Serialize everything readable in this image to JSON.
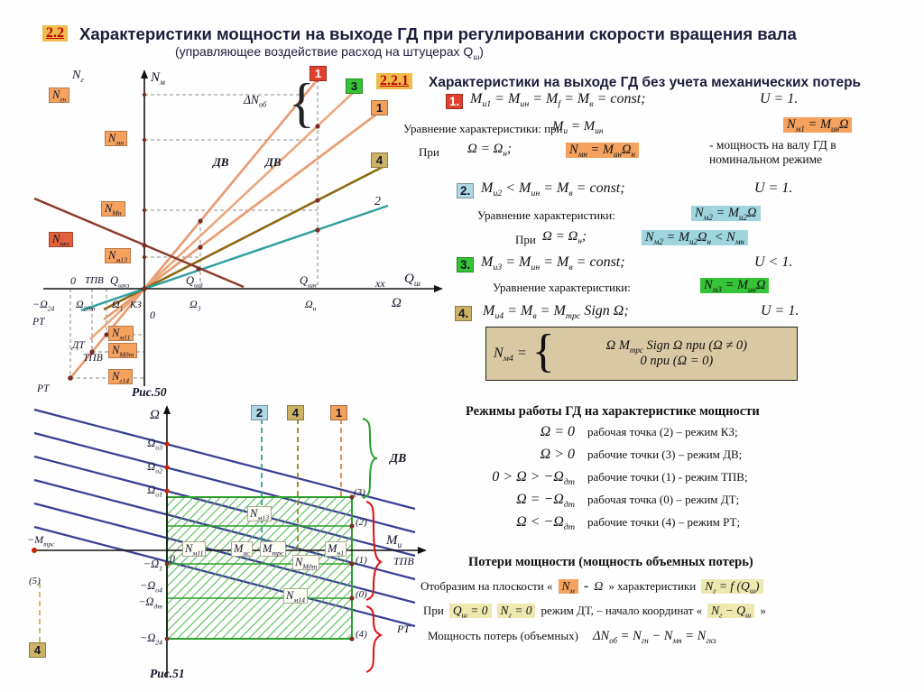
{
  "colors": {
    "accent_orange": "#F5A25F",
    "accent_teal": "#9FD6DE",
    "accent_green": "#35C435",
    "accent_tan": "#D9C9A3",
    "accent_yellow": "#EDE8AE",
    "badge_gold": "#F0BC4E",
    "badge_red": "#B90000",
    "line_salmon": "#E89A70",
    "line_olive": "#8B6914",
    "line_teal": "#2E9E9E",
    "line_brown": "#8B3A2A",
    "line_navy": "#3A3F94",
    "hatch_green": "#2BA02B"
  },
  "header": {
    "badge": "2.2",
    "title": "Характеристики мощности на выходе ГД при регулировании скорости вращения вала",
    "subtitle": "(управляющее воздействие расход на штуцерах Q_{ш})"
  },
  "section": {
    "badge": "2.2.1",
    "title": "Характеристики на выходе ГД без учета механических потерь"
  },
  "items": [
    {
      "num": "1.",
      "formula": "M_{и1} = M_{ин} = M_{f} = M_{в} = const;",
      "u": "U = 1.",
      "eq_label": "Уравнение характеристики: при",
      "eq_cond": "M_{и} = M_{ин}",
      "eq_result": "N_{м1} = M_{ин}Ω",
      "at_label": "При",
      "at_cond": "Ω = Ω_{н};",
      "at_result": "N_{мн} = M_{ин}Ω_{н}",
      "at_note": "- мощность на валу ГД в номинальном режиме"
    },
    {
      "num": "2.",
      "formula": "M_{и2} < M_{ин} = M_{в} = const;",
      "u": "U = 1.",
      "eq_label": "Уравнение характеристики:",
      "eq_result": "N_{м2} = M_{и2}Ω",
      "at_label": "При",
      "at_cond": "Ω = Ω_{н};",
      "at_result": "N_{м2} = M_{и2}Ω_{н} < N_{мн}"
    },
    {
      "num": "3.",
      "formula": "M_{и3} = M_{ин} = M_{в} = const;",
      "u": "U < 1.",
      "eq_label": "Уравнение характеристики:",
      "eq_result": "N_{м3} = M_{ин}Ω"
    },
    {
      "num": "4.",
      "formula": "M_{и4} = M_{в} = M_{трс} Sign Ω;",
      "u": "U = 1.",
      "box_lhs": "N_{м4} =",
      "box_case1": "Ω M_{трс} Sign Ω   при   (Ω ≠ 0)",
      "box_case2": "0  при  (Ω = 0)"
    }
  ],
  "modes": {
    "title": "Режимы работы ГД на характеристике мощности",
    "rows": [
      {
        "cond": "Ω = 0",
        "desc": "рабочая точка (2) – режим КЗ;"
      },
      {
        "cond": "Ω > 0",
        "desc": "рабочие точки (3) – режим ДВ;"
      },
      {
        "cond": "0 > Ω > −Ω_{дт}",
        "desc": "рабочие точки (1) - режим ТПВ;"
      },
      {
        "cond": "Ω = −Ω_{дт}",
        "desc": "рабочая точка (0) – режим ДТ;"
      },
      {
        "cond": "Ω < −Ω_{дт}",
        "desc": "рабочие точки (4) – режим РТ;"
      }
    ]
  },
  "losses": {
    "title": "Потери мощности (мощность объемных потерь)",
    "line1_pre": "Отобразим на плоскости «",
    "line1_nm": "N_{м}",
    "line1_dash": "-",
    "line1_omega": "Ω",
    "line1_mid": "» характеристики",
    "line1_func": "N_{г} = f (Q_{ш})",
    "line2_pre": "При",
    "line2_q": "Q_{ш} = 0",
    "line2_n": "N_{г} = 0",
    "line2_mid": "режим ДТ, – начало координат «",
    "line2_axes": "N_{г} − Q_{ш}",
    "line2_close": "»",
    "line3_pre": "Мощность потерь (объемных)",
    "line3_formula": "ΔN_{об} = N_{гн} − N_{мн} = N_{гкз}"
  },
  "fig50": {
    "caption": "Рис.50",
    "y_label": "N_{м}",
    "y_label2": "N_{г}",
    "x_label": "Q_{ш}",
    "xx": "хх",
    "omega": "Ω",
    "chips": {
      "gn": "N_{гн}",
      "mn": "N_{мн}",
      "Mn": "N_{Мн}",
      "pkz": "N_{пкз}",
      "m13": "N_{м13}",
      "m11": "N_{м11}",
      "Mdt": "N_{Мдт}",
      "g14": "N_{г14}"
    },
    "tags": {
      "a": "1",
      "b": "3",
      "c": "1",
      "d": "4",
      "e": "2"
    },
    "dv": "ДВ",
    "delta": "ΔN_{об}",
    "xt": {
      "zero": "0",
      "tpv": "ТПВ",
      "qkz": "Q_{шкз}",
      "q3": "Q_{ш3}",
      "qn": "Q_{шн}"
    },
    "ot": {
      "m24": "−Ω_{24}",
      "o2dt": "Ω_{2дт}",
      "o1": "Ω_{1}",
      "kz": "КЗ",
      "zero": "0",
      "o3": "Ω_{3}",
      "on": "Ω_{н}"
    },
    "side": {
      "rt": "РТ",
      "dt": "ДТ",
      "tpv": "ТПВ",
      "rt2": "РТ"
    }
  },
  "fig51": {
    "caption": "Рис.51",
    "y_label": "Ω",
    "x_label": "M_{и}",
    "yt": {
      "o3": "Ω_{о3}",
      "o2": "Ω_{о2}",
      "o1": "Ω_{о1}",
      "m1": "−Ω_{1}",
      "mo4": "−Ω_{о4}",
      "mdt": "−Ω_{дт}",
      "m24": "−Ω_{24}"
    },
    "mtrs": "−M_{трс}",
    "p5": "(5)",
    "zero": "0",
    "tags": {
      "t2": "2",
      "t4": "4",
      "t1": "1",
      "b4": "4"
    },
    "w": {
      "nm13": "N_{м13}",
      "nm11": "N_{м11}",
      "mis": "M_{ис}",
      "mtr": "M_{трс}",
      "mn1": "M_{н1}",
      "nmdt": "N_{Мдт}",
      "nm14": "N_{м14}"
    },
    "pts": {
      "p3": "(3)",
      "p2": "(2)",
      "p1": "(1)",
      "p0": "(0)",
      "p4": "(4)"
    },
    "side": {
      "dv": "ДВ",
      "tpv": "ТПВ",
      "rt": "РТ"
    }
  }
}
